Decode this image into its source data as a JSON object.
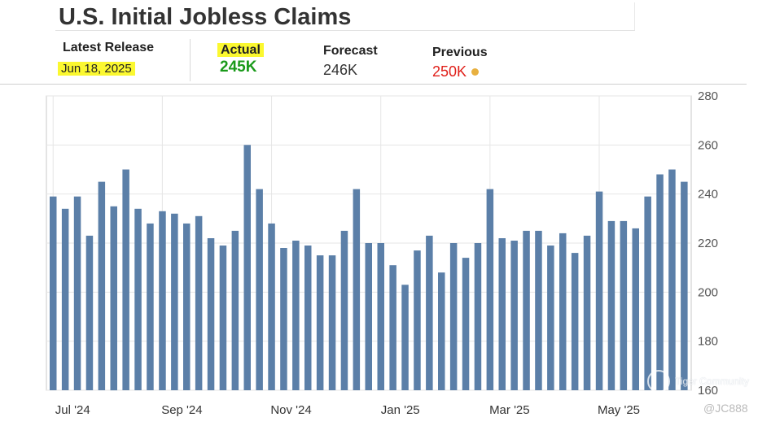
{
  "header": {
    "title": "U.S. Initial Jobless Claims",
    "latest_release_label": "Latest Release",
    "latest_release_date": "Jun 18, 2025",
    "actual_label": "Actual",
    "actual_value": "245K",
    "forecast_label": "Forecast",
    "forecast_value": "246K",
    "previous_label": "Previous",
    "previous_value": "250K"
  },
  "colors": {
    "actual": "#1a9a1a",
    "previous": "#e0201a",
    "forecast": "#333333",
    "bar": "#5b7fa8",
    "highlight": "#fbf830",
    "dot": "#e8b040"
  },
  "watermark": {
    "brand": "Tiger Community",
    "handle": "@JC888"
  },
  "chart_data": {
    "type": "bar",
    "title": "",
    "xlabel": "",
    "ylabel": "",
    "ylim": [
      160,
      280
    ],
    "yticks": [
      160,
      180,
      200,
      220,
      240,
      260,
      280
    ],
    "y_axis_position": "right",
    "grid": true,
    "x_tick_labels": [
      "Jul '24",
      "Sep '24",
      "Nov '24",
      "Jan '25",
      "Mar '25",
      "May '25"
    ],
    "x_tick_bar_index": [
      0,
      9,
      18,
      27,
      36,
      45
    ],
    "values": [
      239,
      234,
      239,
      223,
      245,
      235,
      250,
      234,
      228,
      233,
      232,
      228,
      231,
      222,
      219,
      225,
      260,
      242,
      228,
      218,
      221,
      219,
      215,
      215,
      225,
      242,
      220,
      220,
      211,
      203,
      217,
      223,
      208,
      220,
      214,
      220,
      242,
      222,
      221,
      225,
      225,
      219,
      224,
      216,
      223,
      241,
      229,
      229,
      226,
      239,
      248,
      250,
      245
    ]
  }
}
